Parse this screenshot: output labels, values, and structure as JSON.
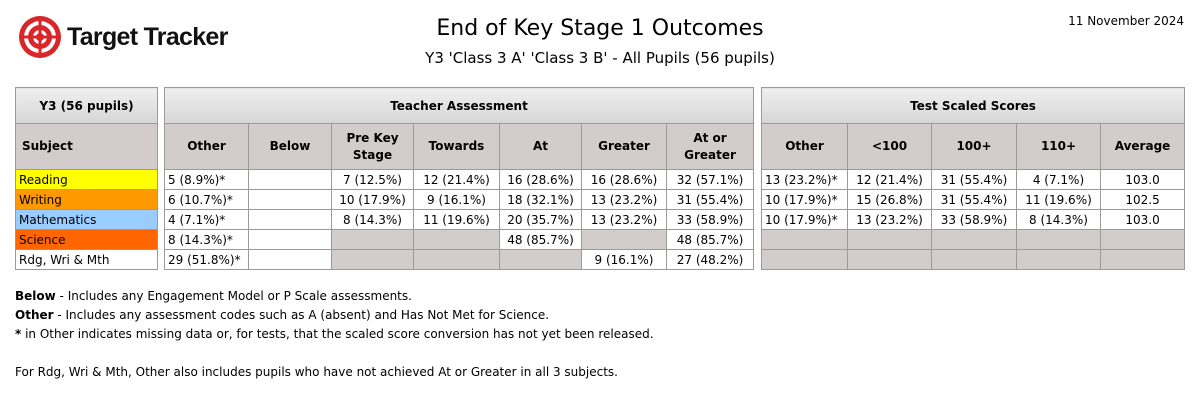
{
  "header": {
    "logo_text": "Target Tracker",
    "title": "End of Key Stage 1 Outcomes",
    "subtitle": "Y3 'Class 3 A' 'Class 3 B' - All Pupils (56 pupils)",
    "date": "11 November 2024"
  },
  "subject_table": {
    "group_header": "Y3 (56 pupils)",
    "column_header": "Subject",
    "rows": [
      {
        "label": "Reading",
        "color": "#ffff00"
      },
      {
        "label": "Writing",
        "color": "#ff9900"
      },
      {
        "label": "Mathematics",
        "color": "#99ccff"
      },
      {
        "label": "Science",
        "color": "#ff6600"
      },
      {
        "label": "Rdg, Wri & Mth",
        "color": "#ffffff"
      }
    ]
  },
  "teacher_assessment": {
    "title": "Teacher Assessment",
    "columns": [
      "Other",
      "Below",
      "Pre Key Stage",
      "Towards",
      "At",
      "Greater",
      "At or Greater"
    ],
    "rows": [
      [
        "5 (8.9%)*",
        "",
        "7 (12.5%)",
        "12 (21.4%)",
        "16 (28.6%)",
        "16 (28.6%)",
        "32 (57.1%)"
      ],
      [
        "6 (10.7%)*",
        "",
        "10 (17.9%)",
        "9 (16.1%)",
        "18 (32.1%)",
        "13 (23.2%)",
        "31 (55.4%)"
      ],
      [
        "4 (7.1%)*",
        "",
        "8 (14.3%)",
        "11 (19.6%)",
        "20 (35.7%)",
        "13 (23.2%)",
        "33 (58.9%)"
      ],
      [
        "8 (14.3%)*",
        "",
        "",
        "",
        "48 (85.7%)",
        "",
        "48 (85.7%)"
      ],
      [
        "29 (51.8%)*",
        "",
        "",
        "",
        "",
        "9 (16.1%)",
        "27 (48.2%)"
      ]
    ]
  },
  "test_scaled_scores": {
    "title": "Test Scaled Scores",
    "columns": [
      "Other",
      "<100",
      "100+",
      "110+",
      "Average"
    ],
    "rows": [
      [
        "13 (23.2%)*",
        "12 (21.4%)",
        "31 (55.4%)",
        "4 (7.1%)",
        "103.0"
      ],
      [
        "10 (17.9%)*",
        "15 (26.8%)",
        "31 (55.4%)",
        "11 (19.6%)",
        "102.5"
      ],
      [
        "10 (17.9%)*",
        "13 (23.2%)",
        "33 (58.9%)",
        "8 (14.3%)",
        "103.0"
      ],
      [
        "",
        "",
        "",
        "",
        ""
      ],
      [
        "",
        "",
        "",
        "",
        ""
      ]
    ]
  },
  "notes": {
    "below_term": "Below",
    "below_text": " - Includes any Engagement Model or P Scale assessments.",
    "other_term": "Other",
    "other_text": " - Includes any assessment codes such as A (absent) and Has Not Met for Science.",
    "star_term": "*",
    "star_text": " in Other indicates missing data or, for tests, that the scaled score conversion has not yet been released.",
    "rwm_text": "For Rdg, Wri & Mth, Other also includes pupils who have not achieved At or Greater in all 3 subjects."
  }
}
